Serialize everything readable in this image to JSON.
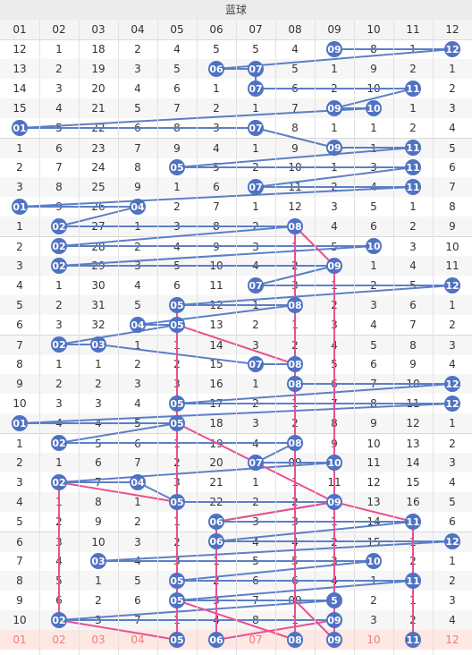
{
  "title": "蓝球",
  "columns": [
    "01",
    "02",
    "03",
    "04",
    "05",
    "06",
    "07",
    "08",
    "09",
    "10",
    "11",
    "12"
  ],
  "colors": {
    "blue_line": "#5b7fc7",
    "pink_line": "#ea4f8f",
    "ball_fill": "#4f72c3",
    "footer_text": "#f07c74"
  },
  "rows": [
    {
      "cells": [
        "12",
        "1",
        "18",
        "2",
        "4",
        "5",
        "5",
        "4",
        "09",
        "8",
        "1",
        "12"
      ],
      "hit": [
        9,
        12
      ]
    },
    {
      "cells": [
        "13",
        "2",
        "19",
        "3",
        "5",
        "06",
        "07",
        "5",
        "1",
        "9",
        "2",
        "1"
      ],
      "hit": [
        6,
        7
      ]
    },
    {
      "cells": [
        "14",
        "3",
        "20",
        "4",
        "6",
        "1",
        "07",
        "6",
        "2",
        "10",
        "11",
        "2"
      ],
      "hit": [
        7,
        11
      ]
    },
    {
      "cells": [
        "15",
        "4",
        "21",
        "5",
        "7",
        "2",
        "1",
        "7",
        "09",
        "10",
        "1",
        "3"
      ],
      "hit": [
        9,
        10
      ]
    },
    {
      "cells": [
        "01",
        "5",
        "22",
        "6",
        "8",
        "3",
        "07",
        "8",
        "1",
        "1",
        "2",
        "4"
      ],
      "hit": [
        1,
        7
      ]
    },
    {
      "cells": [
        "1",
        "6",
        "23",
        "7",
        "9",
        "4",
        "1",
        "9",
        "09",
        "1",
        "11",
        "5"
      ],
      "hit": [
        9,
        11
      ]
    },
    {
      "cells": [
        "2",
        "7",
        "24",
        "8",
        "05",
        "5",
        "2",
        "10",
        "1",
        "3",
        "11",
        "6"
      ],
      "hit": [
        5,
        11
      ]
    },
    {
      "cells": [
        "3",
        "8",
        "25",
        "9",
        "1",
        "6",
        "07",
        "11",
        "2",
        "4",
        "11",
        "7"
      ],
      "hit": [
        7,
        11
      ]
    },
    {
      "cells": [
        "01",
        "9",
        "26",
        "04",
        "2",
        "7",
        "1",
        "12",
        "3",
        "5",
        "1",
        "8"
      ],
      "hit": [
        1,
        4
      ]
    },
    {
      "cells": [
        "1",
        "02",
        "27",
        "1",
        "3",
        "8",
        "2",
        "08",
        "4",
        "6",
        "2",
        "9"
      ],
      "hit": [
        2,
        8
      ]
    },
    {
      "cells": [
        "2",
        "02",
        "28",
        "2",
        "4",
        "9",
        "3",
        "1",
        "5",
        "10",
        "3",
        "10"
      ],
      "hit": [
        2,
        10
      ]
    },
    {
      "cells": [
        "3",
        "02",
        "29",
        "3",
        "5",
        "10",
        "4",
        "2",
        "09",
        "1",
        "4",
        "11"
      ],
      "hit": [
        2,
        9
      ]
    },
    {
      "cells": [
        "4",
        "1",
        "30",
        "4",
        "6",
        "11",
        "07",
        "3",
        "1",
        "2",
        "5",
        "12"
      ],
      "hit": [
        7,
        12
      ]
    },
    {
      "cells": [
        "5",
        "2",
        "31",
        "5",
        "05",
        "12",
        "1",
        "08",
        "2",
        "3",
        "6",
        "1"
      ],
      "hit": [
        5,
        8
      ]
    },
    {
      "cells": [
        "6",
        "3",
        "32",
        "04",
        "05",
        "13",
        "2",
        "1",
        "3",
        "4",
        "7",
        "2"
      ],
      "hit": [
        4,
        5
      ]
    },
    {
      "cells": [
        "7",
        "02",
        "03",
        "1",
        "1",
        "14",
        "3",
        "2",
        "4",
        "5",
        "8",
        "3"
      ],
      "hit": [
        2,
        3
      ]
    },
    {
      "cells": [
        "8",
        "1",
        "1",
        "2",
        "2",
        "15",
        "07",
        "08",
        "5",
        "6",
        "9",
        "4"
      ],
      "hit": [
        7,
        8
      ]
    },
    {
      "cells": [
        "9",
        "2",
        "2",
        "3",
        "3",
        "16",
        "1",
        "08",
        "6",
        "7",
        "10",
        "12"
      ],
      "hit": [
        8,
        12
      ]
    },
    {
      "cells": [
        "10",
        "3",
        "3",
        "4",
        "05",
        "17",
        "2",
        "1",
        "7",
        "8",
        "11",
        "12"
      ],
      "hit": [
        5,
        12
      ]
    },
    {
      "cells": [
        "01",
        "4",
        "4",
        "5",
        "05",
        "18",
        "3",
        "2",
        "8",
        "9",
        "12",
        "1"
      ],
      "hit": [
        1,
        5
      ]
    },
    {
      "cells": [
        "1",
        "02",
        "5",
        "6",
        "1",
        "19",
        "4",
        "08",
        "9",
        "10",
        "13",
        "2"
      ],
      "hit": [
        2,
        8
      ]
    },
    {
      "cells": [
        "2",
        "1",
        "6",
        "7",
        "2",
        "20",
        "07",
        "09",
        "10",
        "11",
        "14",
        "3"
      ],
      "hit": [
        7,
        9
      ]
    },
    {
      "cells": [
        "3",
        "02",
        "7",
        "04",
        "3",
        "21",
        "1",
        "1",
        "11",
        "12",
        "15",
        "4"
      ],
      "hit": [
        2,
        4
      ]
    },
    {
      "cells": [
        "4",
        "1",
        "8",
        "1",
        "05",
        "22",
        "2",
        "2",
        "09",
        "13",
        "16",
        "5"
      ],
      "hit": [
        5,
        9
      ]
    },
    {
      "cells": [
        "5",
        "2",
        "9",
        "2",
        "1",
        "06",
        "3",
        "3",
        "1",
        "14",
        "11",
        "6"
      ],
      "hit": [
        6,
        11
      ]
    },
    {
      "cells": [
        "6",
        "3",
        "10",
        "3",
        "2",
        "06",
        "4",
        "4",
        "2",
        "15",
        "1",
        "12"
      ],
      "hit": [
        6,
        12
      ]
    },
    {
      "cells": [
        "7",
        "4",
        "03",
        "4",
        "3",
        "1",
        "5",
        "5",
        "3",
        "10",
        "2",
        "1"
      ],
      "hit": [
        3,
        10
      ]
    },
    {
      "cells": [
        "8",
        "5",
        "1",
        "5",
        "05",
        "2",
        "6",
        "6",
        "4",
        "1",
        "11",
        "2"
      ],
      "hit": [
        5,
        11
      ]
    },
    {
      "cells": [
        "9",
        "6",
        "2",
        "6",
        "05",
        "3",
        "7",
        "09",
        "5",
        "2",
        "1",
        "3"
      ],
      "hit": [
        5,
        9
      ]
    },
    {
      "cells": [
        "10",
        "02",
        "3",
        "7",
        "1",
        "4",
        "8",
        "1",
        "09",
        "3",
        "2",
        "4"
      ],
      "hit": [
        2,
        9
      ]
    }
  ],
  "footer": {
    "cells": [
      "01",
      "02",
      "03",
      "04",
      "05",
      "06",
      "07",
      "08",
      "09",
      "10",
      "11",
      "12"
    ],
    "hit": [
      5,
      6,
      8,
      9,
      11
    ]
  }
}
